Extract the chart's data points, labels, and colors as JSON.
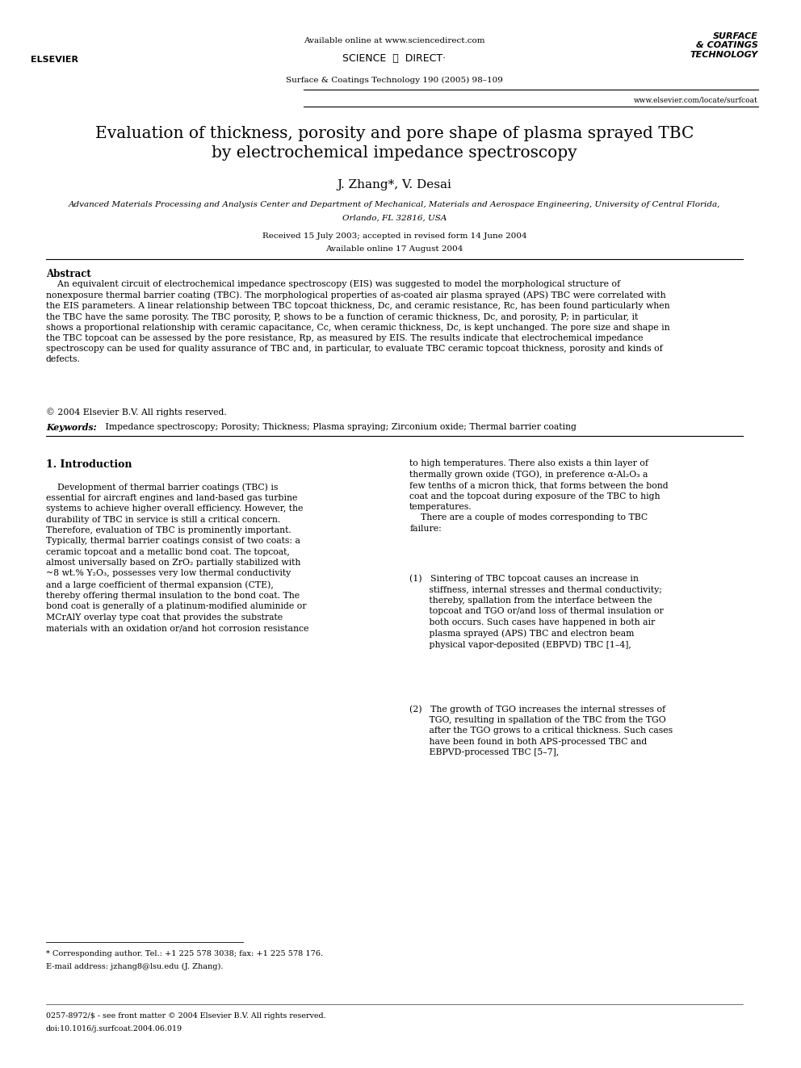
{
  "page_width": 9.92,
  "page_height": 13.23,
  "bg_color": "#ffffff",
  "header": {
    "available_online": "Available online at www.sciencedirect.com",
    "journal_line": "Surface & Coatings Technology 190 (2005) 98–109",
    "website": "www.elsevier.com/locate/surfcoat"
  },
  "title": "Evaluation of thickness, porosity and pore shape of plasma sprayed TBC\nby electrochemical impedance spectroscopy",
  "authors": "J. Zhang*, V. Desai",
  "affiliation_line1": "Advanced Materials Processing and Analysis Center and Department of Mechanical, Materials and Aerospace Engineering, University of Central Florida,",
  "affiliation_line2": "Orlando, FL 32816, USA",
  "received": "Received 15 July 2003; accepted in revised form 14 June 2004",
  "available": "Available online 17 August 2004",
  "abstract_heading": "Abstract",
  "abstract_text": "An equivalent circuit of electrochemical impedance spectroscopy (EIS) was suggested to model the morphological structure of nonexposure thermal barrier coating (TBC). The morphological properties of as-coated air plasma sprayed (APS) TBC were correlated with the EIS parameters. A linear relationship between TBC topcoat thickness, Dₑ, and ceramic resistance, Rₑ, has been found particularly when the TBC have the same porosity. The TBC porosity, P, shows to be a function of ceramic thickness, Dₑ, and porosity, P; in particular, it shows a proportional relationship with ceramic capacitance, Cₑ, when ceramic thickness, Dₑ, is kept unchanged. The pore size and shape in the TBC topcoat can be assessed by the pore resistance, Rₚ, as measured by EIS. The results indicate that electrochemical impedance spectroscopy can be used for quality assurance of TBC and, in particular, to evaluate TBC ceramic topcoat thickness, porosity and kinds of defects.",
  "copyright": "© 2004 Elsevier B.V. All rights reserved.",
  "keywords_label": "Keywords:",
  "keywords_text": " Impedance spectroscopy; Porosity; Thickness; Plasma spraying; Zirconium oxide; Thermal barrier coating",
  "section1_heading": "1. Introduction",
  "intro_left": "Development of thermal barrier coatings (TBC) is essential for aircraft engines and land-based gas turbine systems to achieve higher overall efficiency. However, the durability of TBC in service is still a critical concern. Therefore, evaluation of TBC is prominently important. Typically, thermal barrier coatings consist of two coats: a ceramic topcoat and a metallic bond coat. The topcoat, almost universally based on ZrO₂ partially stabilized with ~8 wt.% Y₂O₃, possesses very low thermal conductivity and a large coefficient of thermal expansion (CTE), thereby offering thermal insulation to the bond coat. The bond coat is generally of a platinum-modified aluminide or MCrAlY overlay type coat that provides the substrate materials with an oxidation or/and hot corrosion resistance",
  "intro_right": "to high temperatures. There also exists a thin layer of thermally grown oxide (TGO), in preference α-Al₂O₃ a few tenths of a micron thick, that forms between the bond coat and the topcoat during exposure of the TBC to high temperatures.\n\nThere are a couple of modes corresponding to TBC failure:\n\n(1)   Sintering of TBC topcoat causes an increase in stiffness, internal stresses and thermal conductivity; thereby, spallation from the interface between the topcoat and TGO or/and loss of thermal insulation or both occurs. Such cases have happened in both air plasma sprayed (APS) TBC and electron beam physical vapor-deposited (EBPVD) TBC [1–4],\n\n(2)   The growth of TGO increases the internal stresses of TGO, resulting in spallation of the TBC from the TGO after the TGO grows to a critical thickness. Such cases have been found in both APS-processed TBC and EBPVD-processed TBC [5–7],",
  "footnote_star": "* Corresponding author. Tel.: +1 225 578 3038; fax: +1 225 578 176.",
  "footnote_email": "E-mail address: jzhang8@lsu.edu (J. Zhang).",
  "bottom_line1": "0257-8972/$ - see front matter © 2004 Elsevier B.V. All rights reserved.",
  "bottom_line2": "doi:10.1016/j.surfcoat.2004.06.019"
}
